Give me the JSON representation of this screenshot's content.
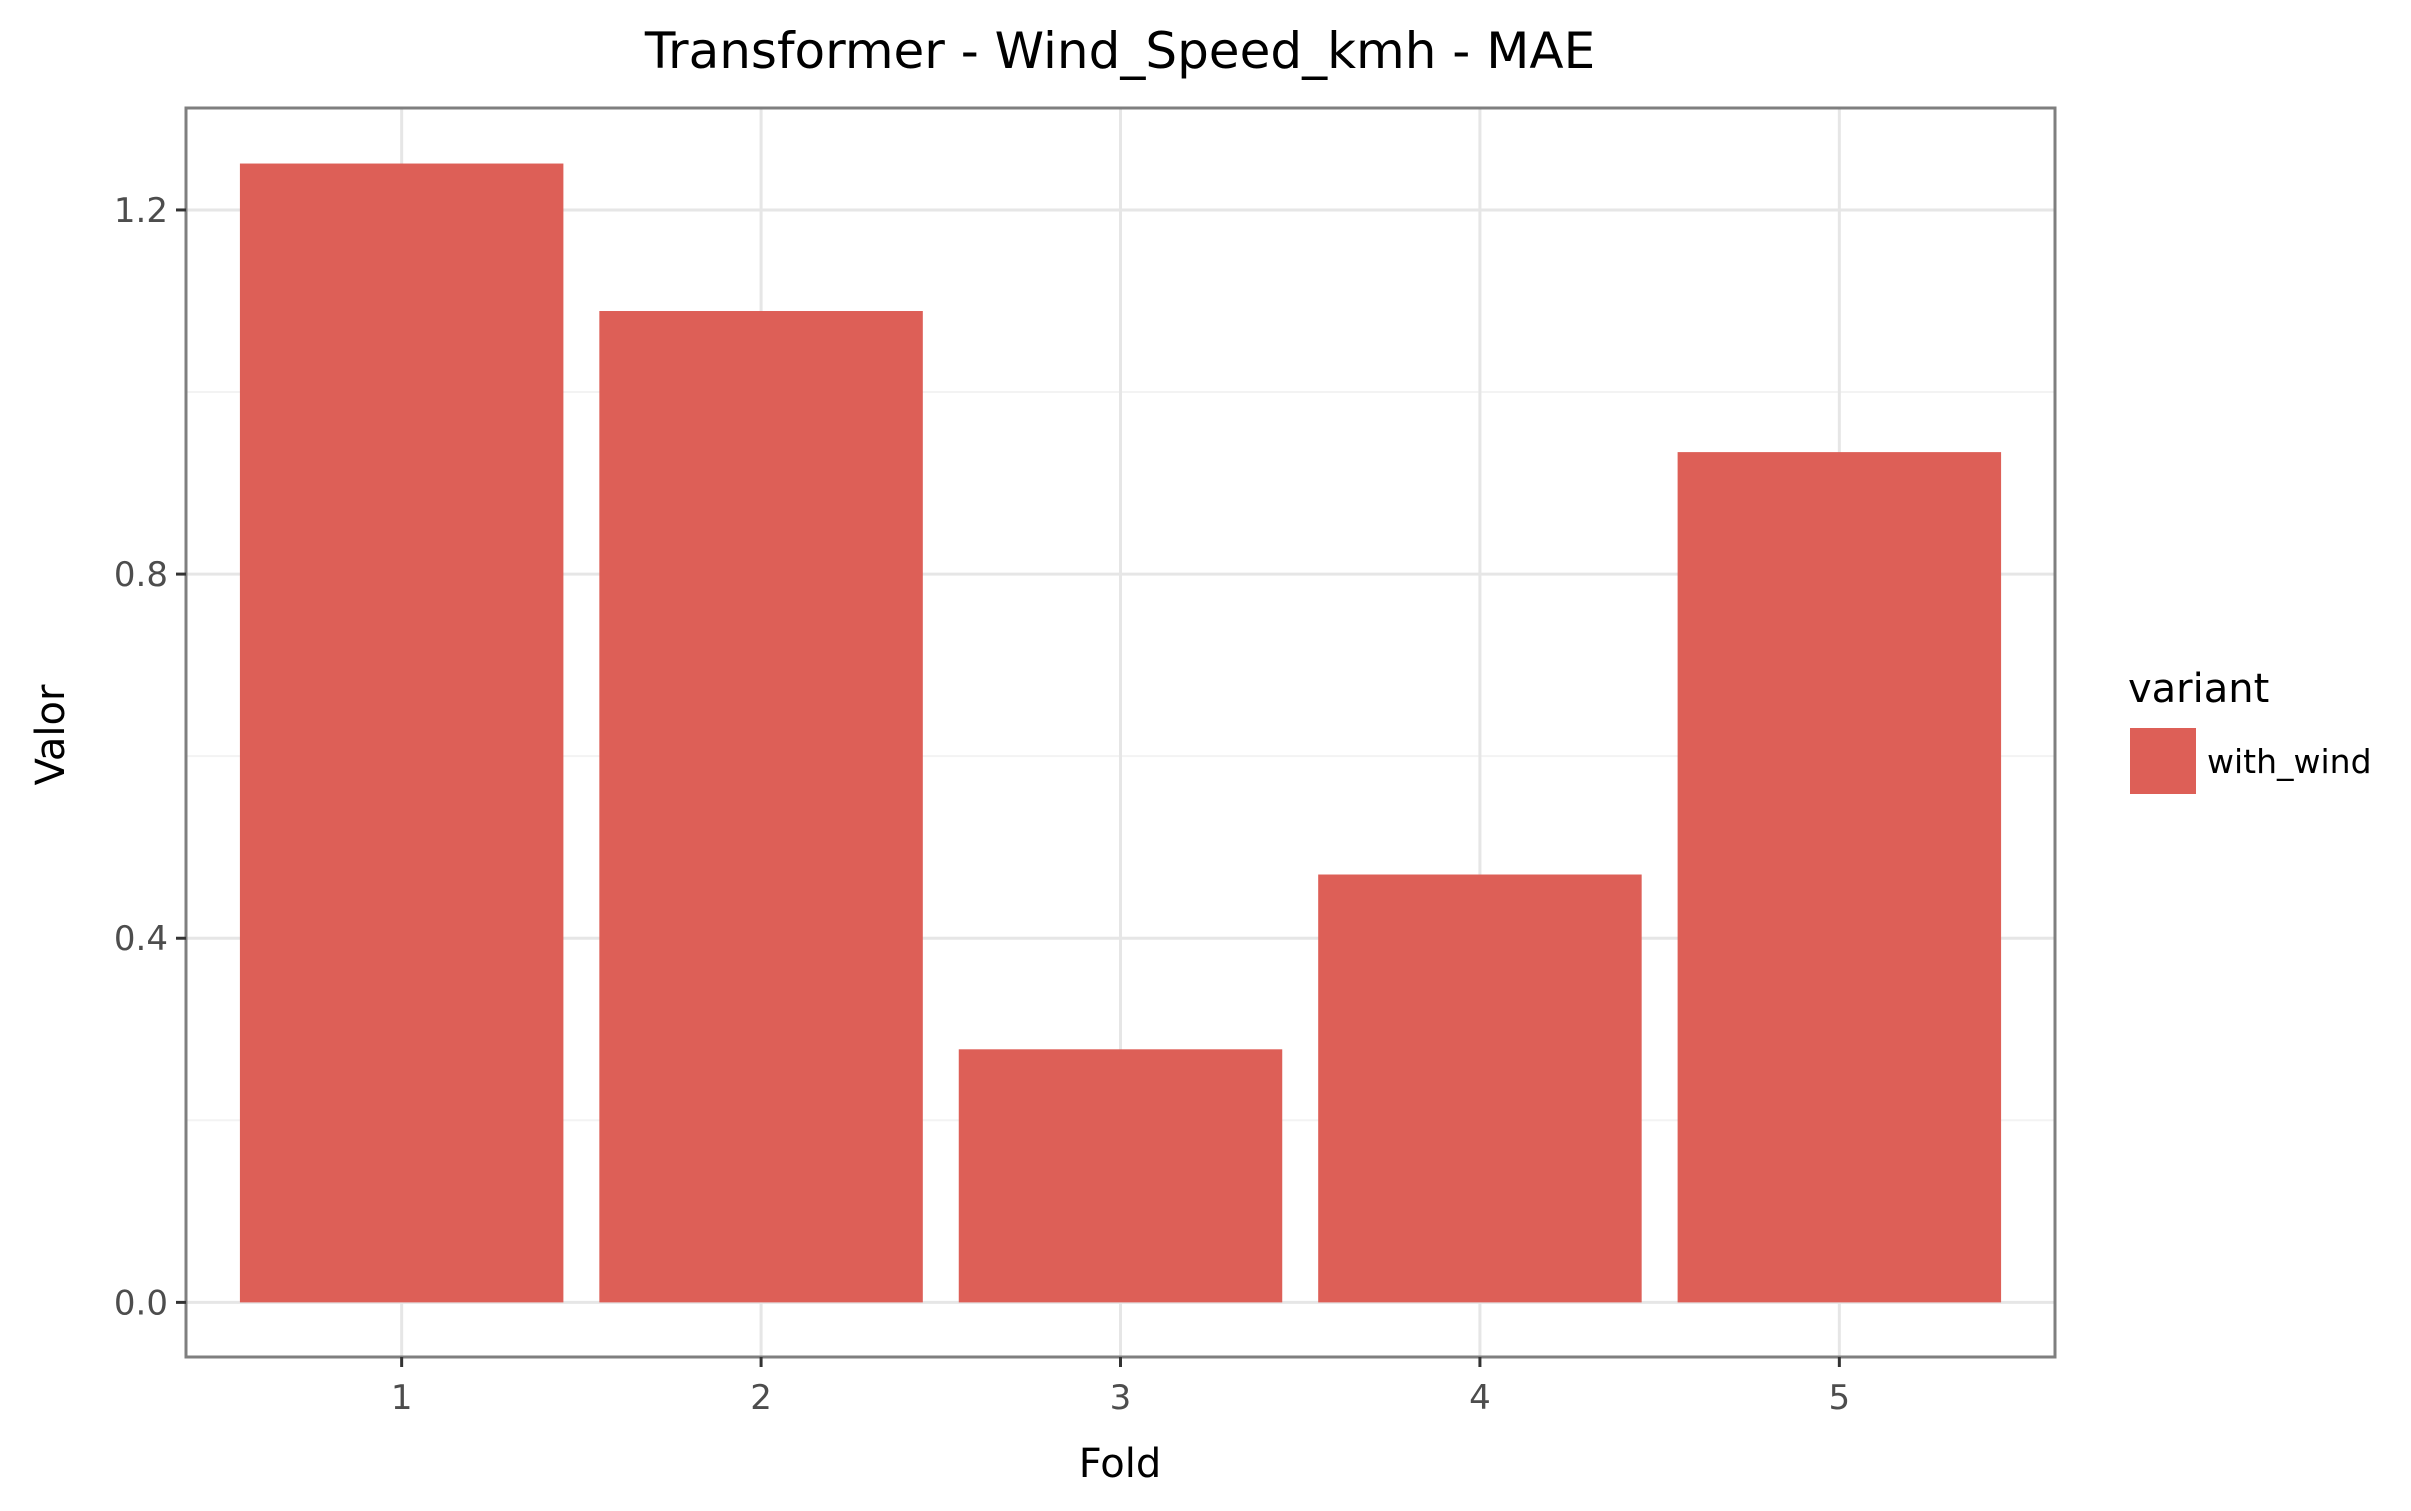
{
  "chart_data": {
    "type": "bar",
    "title": "Transformer - Wind_Speed_kmh - MAE",
    "xlabel": "Fold",
    "ylabel": "Valor",
    "categories": [
      "1",
      "2",
      "3",
      "4",
      "5"
    ],
    "series": [
      {
        "name": "with_wind",
        "values": [
          1.251,
          1.089,
          0.278,
          0.47,
          0.934
        ],
        "color": "#dd5f57"
      }
    ],
    "ylim": [
      -0.06,
      1.312
    ],
    "yticks": [
      0.0,
      0.4,
      0.8,
      1.2
    ],
    "ytick_labels": [
      "0.0",
      "0.4",
      "0.8",
      "1.2"
    ],
    "grid": true,
    "legend": {
      "title": "variant",
      "placement": "right"
    },
    "colors": {
      "panel_border": "#7f7f7f",
      "grid_major": "#e6e6e6",
      "grid_minor": "#f3f3f3",
      "tick_text": "#4d4d4d"
    }
  }
}
